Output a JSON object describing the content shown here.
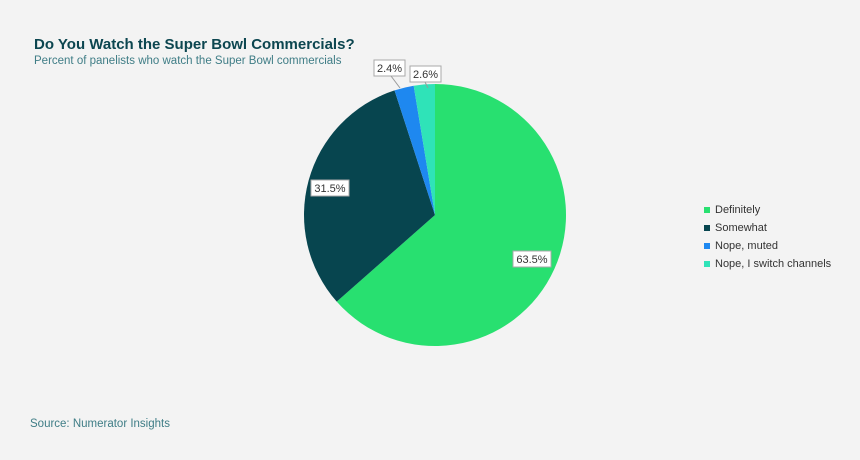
{
  "header": {
    "title": "Do You Watch the Super Bowl Commercials?",
    "subtitle": "Percent of panelists who watch the Super Bowl commercials"
  },
  "footer": {
    "source": "Source: Numerator Insights"
  },
  "chart_data": {
    "type": "pie",
    "title": "Do You Watch the Super Bowl Commercials?",
    "subtitle": "Percent of panelists who watch the Super Bowl commercials",
    "categories": [
      "Definitely",
      "Somewhat",
      "Nope, muted",
      "Nope, I switch channels"
    ],
    "values": [
      63.5,
      31.5,
      2.4,
      2.6
    ],
    "labels": [
      "63.5%",
      "31.5%",
      "2.4%",
      "2.6%"
    ],
    "colors": [
      "#28e070",
      "#07454f",
      "#1e88f0",
      "#2fe3b8"
    ],
    "legend_position": "right",
    "start_angle_deg": 0,
    "direction": "clockwise"
  }
}
